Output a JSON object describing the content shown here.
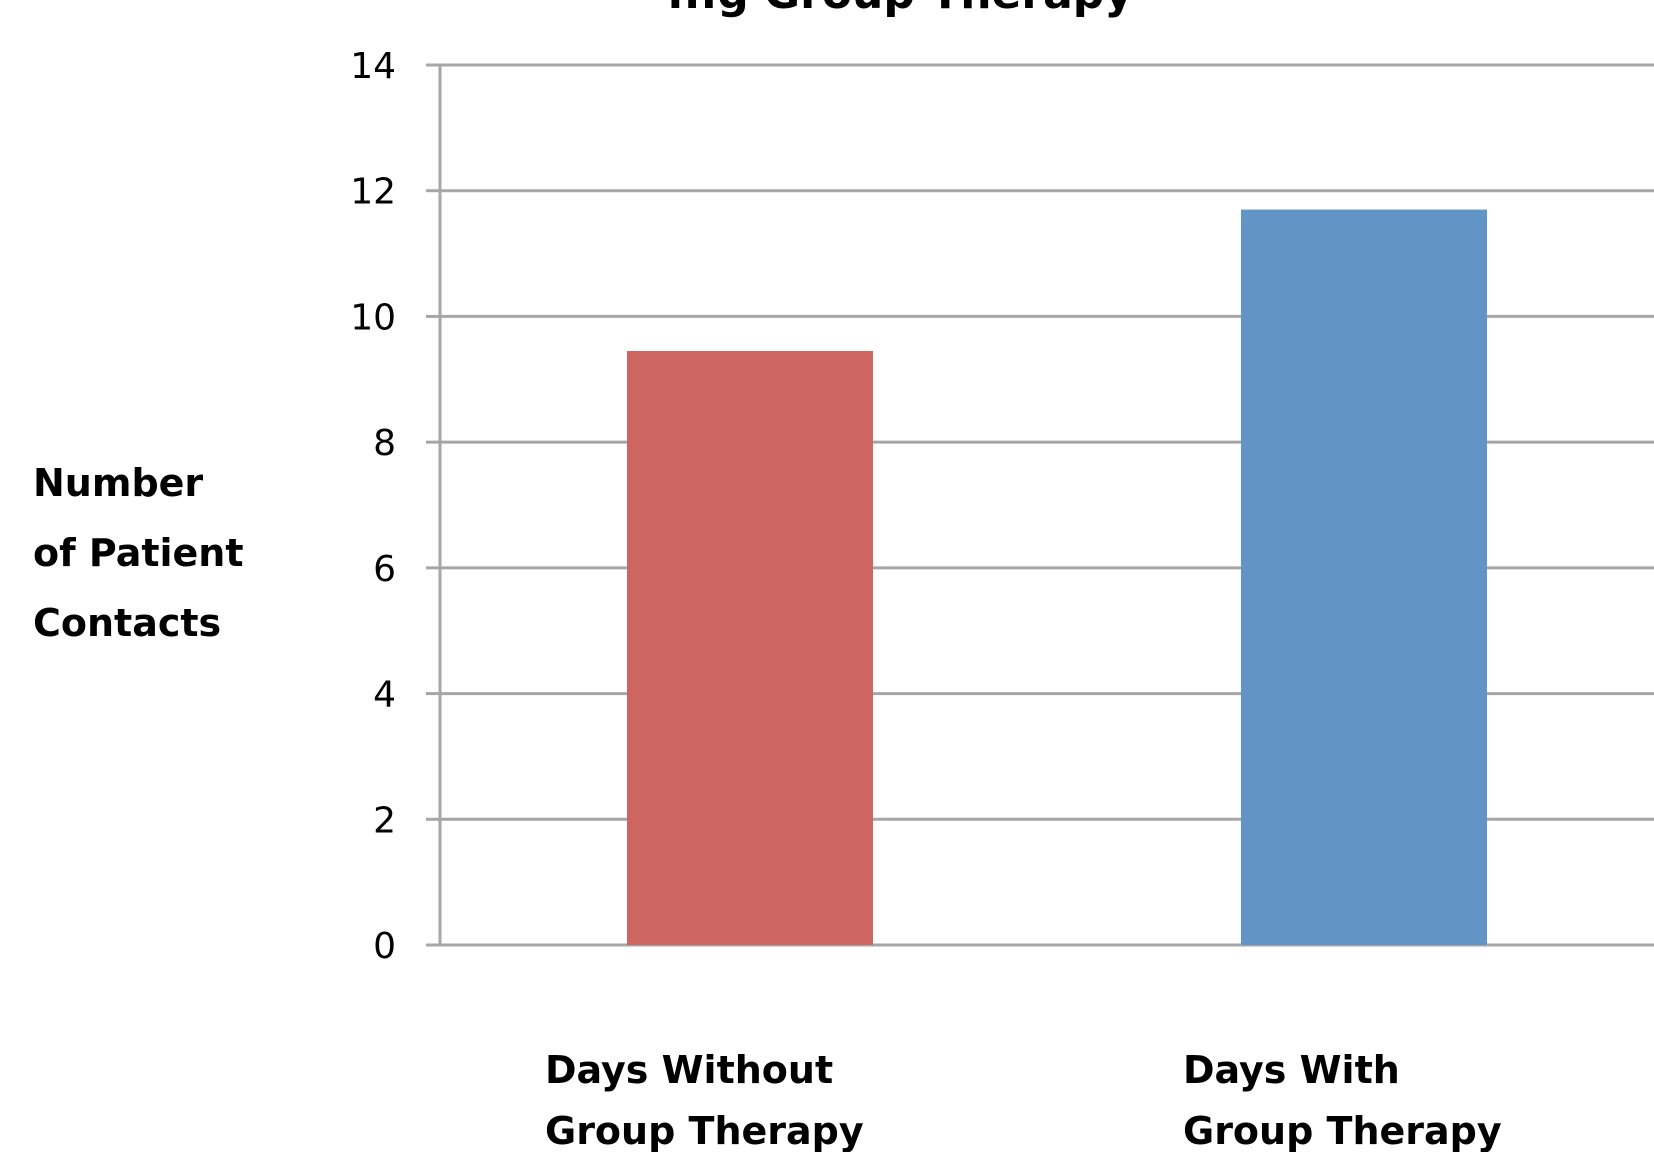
{
  "chart_data": {
    "type": "bar",
    "title": "...g Group Therapy",
    "ylabel_lines": [
      "Number",
      "of Patient",
      "Contacts"
    ],
    "xlabel": "",
    "categories": [
      {
        "lines": [
          "Days Without",
          "Group Therapy"
        ]
      },
      {
        "lines": [
          "Days With",
          "Group Therapy"
        ]
      }
    ],
    "values": [
      9.45,
      11.7
    ],
    "bar_colors": [
      "#cd6561",
      "#6095c5"
    ],
    "ylim": [
      0,
      14
    ],
    "yticks": [
      0,
      2,
      4,
      6,
      8,
      10,
      12,
      14
    ],
    "grid": true,
    "gridline_color": "#a6a6a6",
    "legend": "none"
  }
}
